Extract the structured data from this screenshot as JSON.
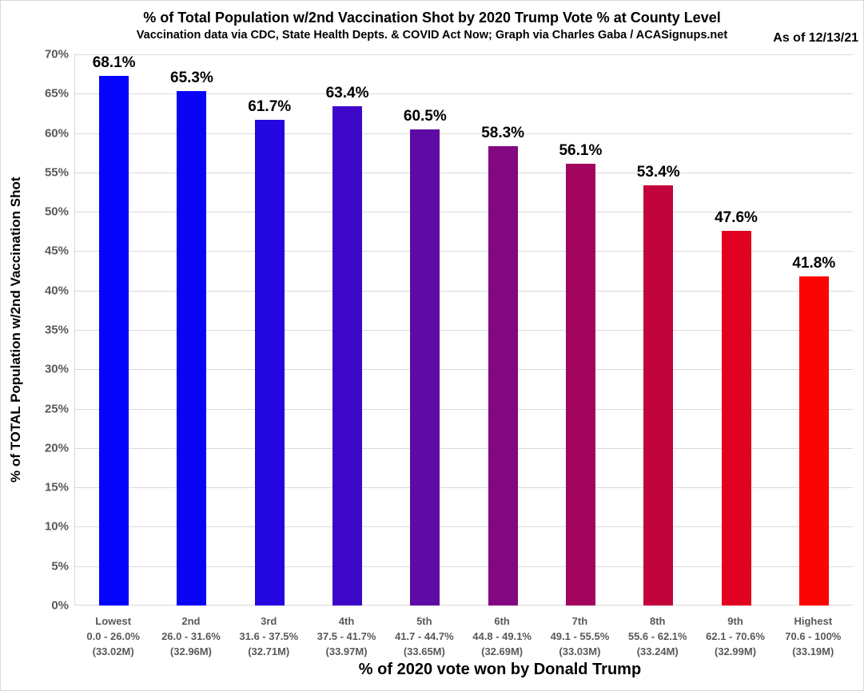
{
  "header": {
    "title": "% of Total Population w/2nd Vaccination Shot by 2020 Trump Vote % at County Level",
    "subtitle": "Vaccination data via CDC, State Health Depts. & COVID Act Now; Graph via Charles Gaba / ACASignups.net",
    "as_of": "As of 12/13/21"
  },
  "chart_data": {
    "type": "bar",
    "title": "% of Total Population w/2nd Vaccination Shot by 2020 Trump Vote % at County Level",
    "subtitle": "Vaccination data via CDC, State Health Depts. & COVID Act Now; Graph via Charles Gaba / ACASignups.net",
    "annotation": "As of 12/13/21",
    "xlabel": "% of 2020 vote won by Donald Trump",
    "ylabel": "% of TOTAL Population w/2nd Vaccination Shot",
    "ylim": [
      0,
      70
    ],
    "ytick_step": 5,
    "ytick_suffix": "%",
    "grid": true,
    "legend": false,
    "categories": [
      {
        "name": "Lowest",
        "range": "0.0 - 26.0%",
        "population": "(33.02M)"
      },
      {
        "name": "2nd",
        "range": "26.0 - 31.6%",
        "population": "(32.96M)"
      },
      {
        "name": "3rd",
        "range": "31.6 - 37.5%",
        "population": "(32.71M)"
      },
      {
        "name": "4th",
        "range": "37.5 - 41.7%",
        "population": "(33.97M)"
      },
      {
        "name": "5th",
        "range": "41.7 - 44.7%",
        "population": "(33.65M)"
      },
      {
        "name": "6th",
        "range": "44.8 - 49.1%",
        "population": "(32.69M)"
      },
      {
        "name": "7th",
        "range": "49.1 - 55.5%",
        "population": "(33.03M)"
      },
      {
        "name": "8th",
        "range": "55.6 - 62.1%",
        "population": "(33.24M)"
      },
      {
        "name": "9th",
        "range": "62.1 - 70.6%",
        "population": "(32.99M)"
      },
      {
        "name": "Highest",
        "range": "70.6 - 100%",
        "population": "(33.19M)"
      }
    ],
    "values": [
      68.1,
      65.3,
      61.7,
      63.4,
      60.5,
      58.3,
      56.1,
      53.4,
      47.6,
      41.8
    ],
    "value_labels": [
      "68.1%",
      "65.3%",
      "61.7%",
      "63.4%",
      "60.5%",
      "58.3%",
      "56.1%",
      "53.4%",
      "47.6%",
      "41.8%"
    ],
    "bar_colors": [
      "#0404fc",
      "#0a04f4",
      "#2306e0",
      "#3e08c8",
      "#5d0ba4",
      "#830780",
      "#a2055e",
      "#c2043c",
      "#e00220",
      "#fb0404"
    ],
    "gridline_color": "#d9d9d9"
  }
}
